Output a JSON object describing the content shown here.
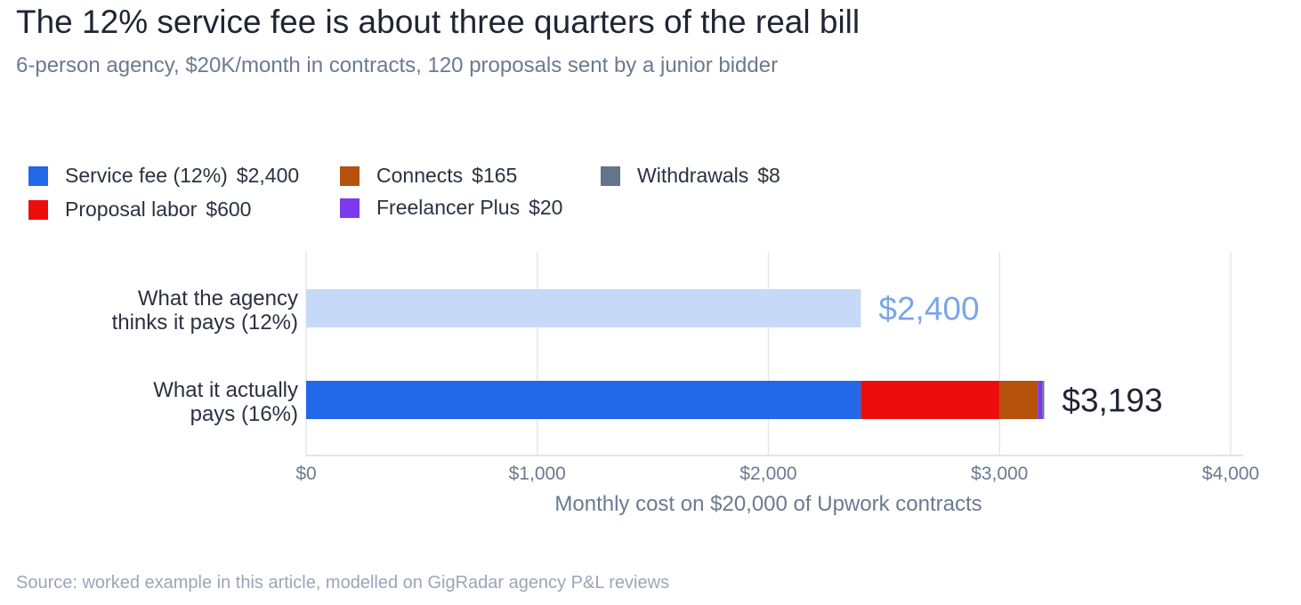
{
  "header": {
    "title": "The 12% service fee is about three quarters of the real bill",
    "subtitle": "6-person agency, $20K/month in contracts, 120 proposals sent by a junior bidder"
  },
  "footer": {
    "source": "Source: worked example in this article, modelled on GigRadar agency P&L reviews"
  },
  "chart_data": {
    "type": "bar",
    "orientation": "horizontal",
    "stacked": true,
    "categories": [
      "What the agency thinks it pays  (12%)",
      "What it actually pays  (16%)"
    ],
    "category_lines": [
      [
        "What the agency",
        "thinks it pays  (12%)"
      ],
      [
        "What it actually",
        "pays  (16%)"
      ]
    ],
    "baseline": {
      "category": "What the agency thinks it pays  (12%)",
      "value": 2400,
      "color": "#c6daf8",
      "label": "$2,400",
      "label_color": "#7ba5e8"
    },
    "series": [
      {
        "name": "Service fee (12%)",
        "legend_value": "$2,400",
        "values": [
          null,
          2400
        ],
        "color": "#2268e8"
      },
      {
        "name": "Proposal labor",
        "legend_value": "$600",
        "values": [
          null,
          600
        ],
        "color": "#ee0d0d"
      },
      {
        "name": "Connects",
        "legend_value": "$165",
        "values": [
          null,
          165
        ],
        "color": "#b4520c"
      },
      {
        "name": "Freelancer Plus",
        "legend_value": "$20",
        "values": [
          null,
          20
        ],
        "color": "#7c3aed"
      },
      {
        "name": "Withdrawals",
        "legend_value": "$8",
        "values": [
          null,
          8
        ],
        "color": "#64748b"
      }
    ],
    "totals": [
      {
        "category": "What it actually pays  (16%)",
        "value": 3193,
        "label": "$3,193",
        "color": "#1f2533"
      }
    ],
    "xlabel": "Monthly cost on $20,000 of Upwork contracts",
    "xlim": [
      0,
      4000
    ],
    "xticks": [
      0,
      1000,
      2000,
      3000,
      4000
    ],
    "xtick_labels": [
      "$0",
      "$1,000",
      "$2,000",
      "$3,000",
      "$4,000"
    ],
    "grid": "vertical",
    "legend_position": "top-left"
  },
  "colors": {
    "title": "#1f2533",
    "subtitle": "#6b7a90",
    "axis_text": "#6b7a90",
    "grid": "#e3e7ee",
    "source": "#9aa6b8"
  }
}
